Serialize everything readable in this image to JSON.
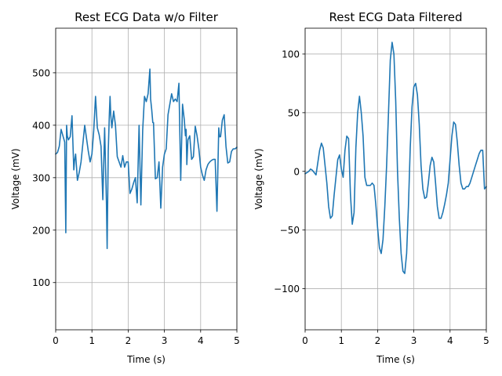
{
  "chart_data": [
    {
      "type": "line",
      "title": "Rest ECG Data w/o Filter",
      "xlabel": "Time (s)",
      "ylabel": "Voltage (mV)",
      "xlim": [
        0,
        5
      ],
      "ylim": [
        10,
        585
      ],
      "xticks": [
        0,
        1,
        2,
        3,
        4,
        5
      ],
      "yticks": [
        100,
        200,
        300,
        400,
        500
      ],
      "grid": true,
      "color": "#1f77b4",
      "series": [
        {
          "x": [
            0,
            0.05,
            0.1,
            0.15,
            0.2,
            0.25,
            0.28,
            0.3,
            0.32,
            0.35,
            0.4,
            0.45,
            0.5,
            0.52,
            0.55,
            0.6,
            0.65,
            0.7,
            0.8,
            0.9,
            0.95,
            1.0,
            1.05,
            1.1,
            1.15,
            1.2,
            1.25,
            1.3,
            1.35,
            1.4,
            1.42,
            1.45,
            1.48,
            1.5,
            1.52,
            1.55,
            1.6,
            1.65,
            1.7,
            1.8,
            1.85,
            1.9,
            1.95,
            2.0,
            2.05,
            2.1,
            2.15,
            2.2,
            2.25,
            2.3,
            2.35,
            2.4,
            2.45,
            2.5,
            2.55,
            2.6,
            2.62,
            2.65,
            2.68,
            2.7,
            2.75,
            2.8,
            2.85,
            2.9,
            2.95,
            3.0,
            3.05,
            3.1,
            3.15,
            3.2,
            3.25,
            3.3,
            3.35,
            3.4,
            3.45,
            3.5,
            3.55,
            3.58,
            3.6,
            3.62,
            3.65,
            3.7,
            3.75,
            3.8,
            3.85,
            3.9,
            3.95,
            4.0,
            4.05,
            4.1,
            4.15,
            4.2,
            4.25,
            4.3,
            4.35,
            4.4,
            4.45,
            4.5,
            4.52,
            4.55,
            4.6,
            4.65,
            4.7,
            4.75,
            4.8,
            4.85,
            4.9,
            4.95,
            5.0
          ],
          "y": [
            345,
            348,
            360,
            392,
            380,
            368,
            195,
            400,
            380,
            372,
            378,
            418,
            315,
            332,
            345,
            295,
            310,
            330,
            400,
            350,
            330,
            345,
            390,
            455,
            395,
            382,
            360,
            258,
            395,
            252,
            165,
            350,
            420,
            455,
            420,
            395,
            427,
            400,
            340,
            320,
            342,
            320,
            330,
            330,
            270,
            278,
            290,
            300,
            252,
            400,
            248,
            390,
            455,
            445,
            460,
            507,
            450,
            430,
            405,
            405,
            298,
            300,
            330,
            242,
            320,
            345,
            355,
            420,
            440,
            460,
            445,
            450,
            445,
            480,
            295,
            440,
            410,
            380,
            392,
            325,
            372,
            380,
            335,
            340,
            398,
            380,
            355,
            320,
            305,
            295,
            315,
            325,
            330,
            333,
            335,
            335,
            236,
            395,
            378,
            378,
            410,
            420,
            360,
            328,
            330,
            350,
            355,
            355,
            358
          ]
        }
      ]
    },
    {
      "type": "line",
      "title": "Rest ECG Data Filtered",
      "xlabel": "Time (s)",
      "ylabel": "Voltage (mV)",
      "xlim": [
        0,
        5
      ],
      "ylim": [
        -135,
        122
      ],
      "xticks": [
        0,
        1,
        2,
        3,
        4,
        5
      ],
      "yticks": [
        -100,
        -50,
        0,
        50,
        100
      ],
      "ytick_labels": [
        "−100",
        "−50",
        "0",
        "50",
        "100"
      ],
      "grid": true,
      "color": "#1f77b4",
      "series": [
        {
          "x": [
            0,
            0.1,
            0.15,
            0.2,
            0.3,
            0.4,
            0.45,
            0.5,
            0.6,
            0.65,
            0.7,
            0.75,
            0.8,
            0.9,
            0.95,
            1.0,
            1.05,
            1.1,
            1.15,
            1.2,
            1.25,
            1.3,
            1.35,
            1.4,
            1.45,
            1.5,
            1.55,
            1.6,
            1.65,
            1.7,
            1.75,
            1.8,
            1.85,
            1.9,
            1.95,
            2.0,
            2.05,
            2.1,
            2.15,
            2.2,
            2.25,
            2.3,
            2.35,
            2.4,
            2.45,
            2.5,
            2.55,
            2.6,
            2.65,
            2.7,
            2.75,
            2.8,
            2.85,
            2.9,
            2.95,
            3.0,
            3.05,
            3.1,
            3.15,
            3.2,
            3.25,
            3.3,
            3.35,
            3.4,
            3.45,
            3.5,
            3.55,
            3.6,
            3.65,
            3.7,
            3.75,
            3.8,
            3.85,
            3.9,
            3.95,
            4.0,
            4.05,
            4.1,
            4.15,
            4.2,
            4.25,
            4.3,
            4.35,
            4.4,
            4.45,
            4.5,
            4.55,
            4.6,
            4.65,
            4.7,
            4.75,
            4.8,
            4.85,
            4.9,
            4.95,
            5.0
          ],
          "y": [
            -2,
            0,
            2,
            1,
            -3,
            18,
            24,
            20,
            -10,
            -30,
            -40,
            -38,
            -20,
            10,
            14,
            2,
            -5,
            18,
            30,
            28,
            -20,
            -45,
            -35,
            20,
            50,
            64,
            50,
            30,
            -5,
            -12,
            -12,
            -12,
            -10,
            -12,
            -28,
            -48,
            -65,
            -70,
            -58,
            -30,
            5,
            50,
            95,
            110,
            100,
            60,
            0,
            -40,
            -70,
            -85,
            -87,
            -70,
            -30,
            20,
            55,
            72,
            75,
            65,
            40,
            5,
            -15,
            -23,
            -22,
            -10,
            5,
            12,
            8,
            -10,
            -30,
            -40,
            -40,
            -35,
            -28,
            -20,
            -10,
            10,
            30,
            42,
            40,
            25,
            5,
            -10,
            -15,
            -15,
            -13,
            -13,
            -10,
            -5,
            0,
            5,
            10,
            15,
            18,
            18,
            -15,
            -13
          ]
        }
      ]
    }
  ]
}
